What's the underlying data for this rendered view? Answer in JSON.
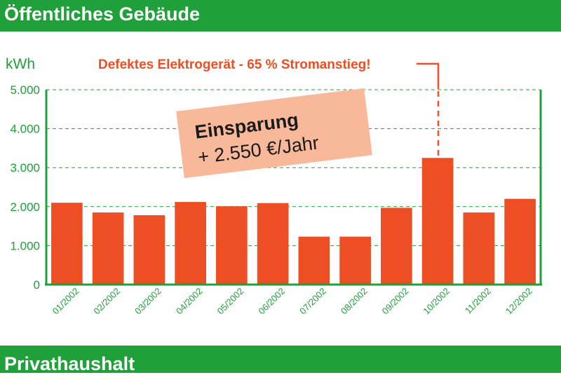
{
  "header": {
    "title": "Öffentliches Gebäude"
  },
  "footer": {
    "title": "Privathaushalt"
  },
  "chart_data": {
    "type": "bar",
    "ylabel": "kWh",
    "ylim": [
      0,
      5000
    ],
    "yticks": [
      "0",
      "1.000",
      "2.000",
      "3.000",
      "4.000",
      "5.000"
    ],
    "grid": true,
    "categories": [
      "01/2002",
      "02/2002",
      "03/2002",
      "04/2002",
      "05/2002",
      "06/2002",
      "07/2002",
      "08/2002",
      "09/2002",
      "10/2002",
      "11/2002",
      "12/2002"
    ],
    "values": [
      2100,
      1850,
      1780,
      2120,
      2010,
      2090,
      1230,
      1230,
      1970,
      3250,
      1850,
      2200
    ],
    "bar_color": "#ee4e23",
    "axis_color": "#1fa03a",
    "annotations": {
      "alert": "Defektes Elektrogerät - 65 % Stromanstieg!",
      "alert_category": "10/2002",
      "savings_title": "Einsparung",
      "savings_value": "+ 2.550 €/Jahr"
    }
  }
}
